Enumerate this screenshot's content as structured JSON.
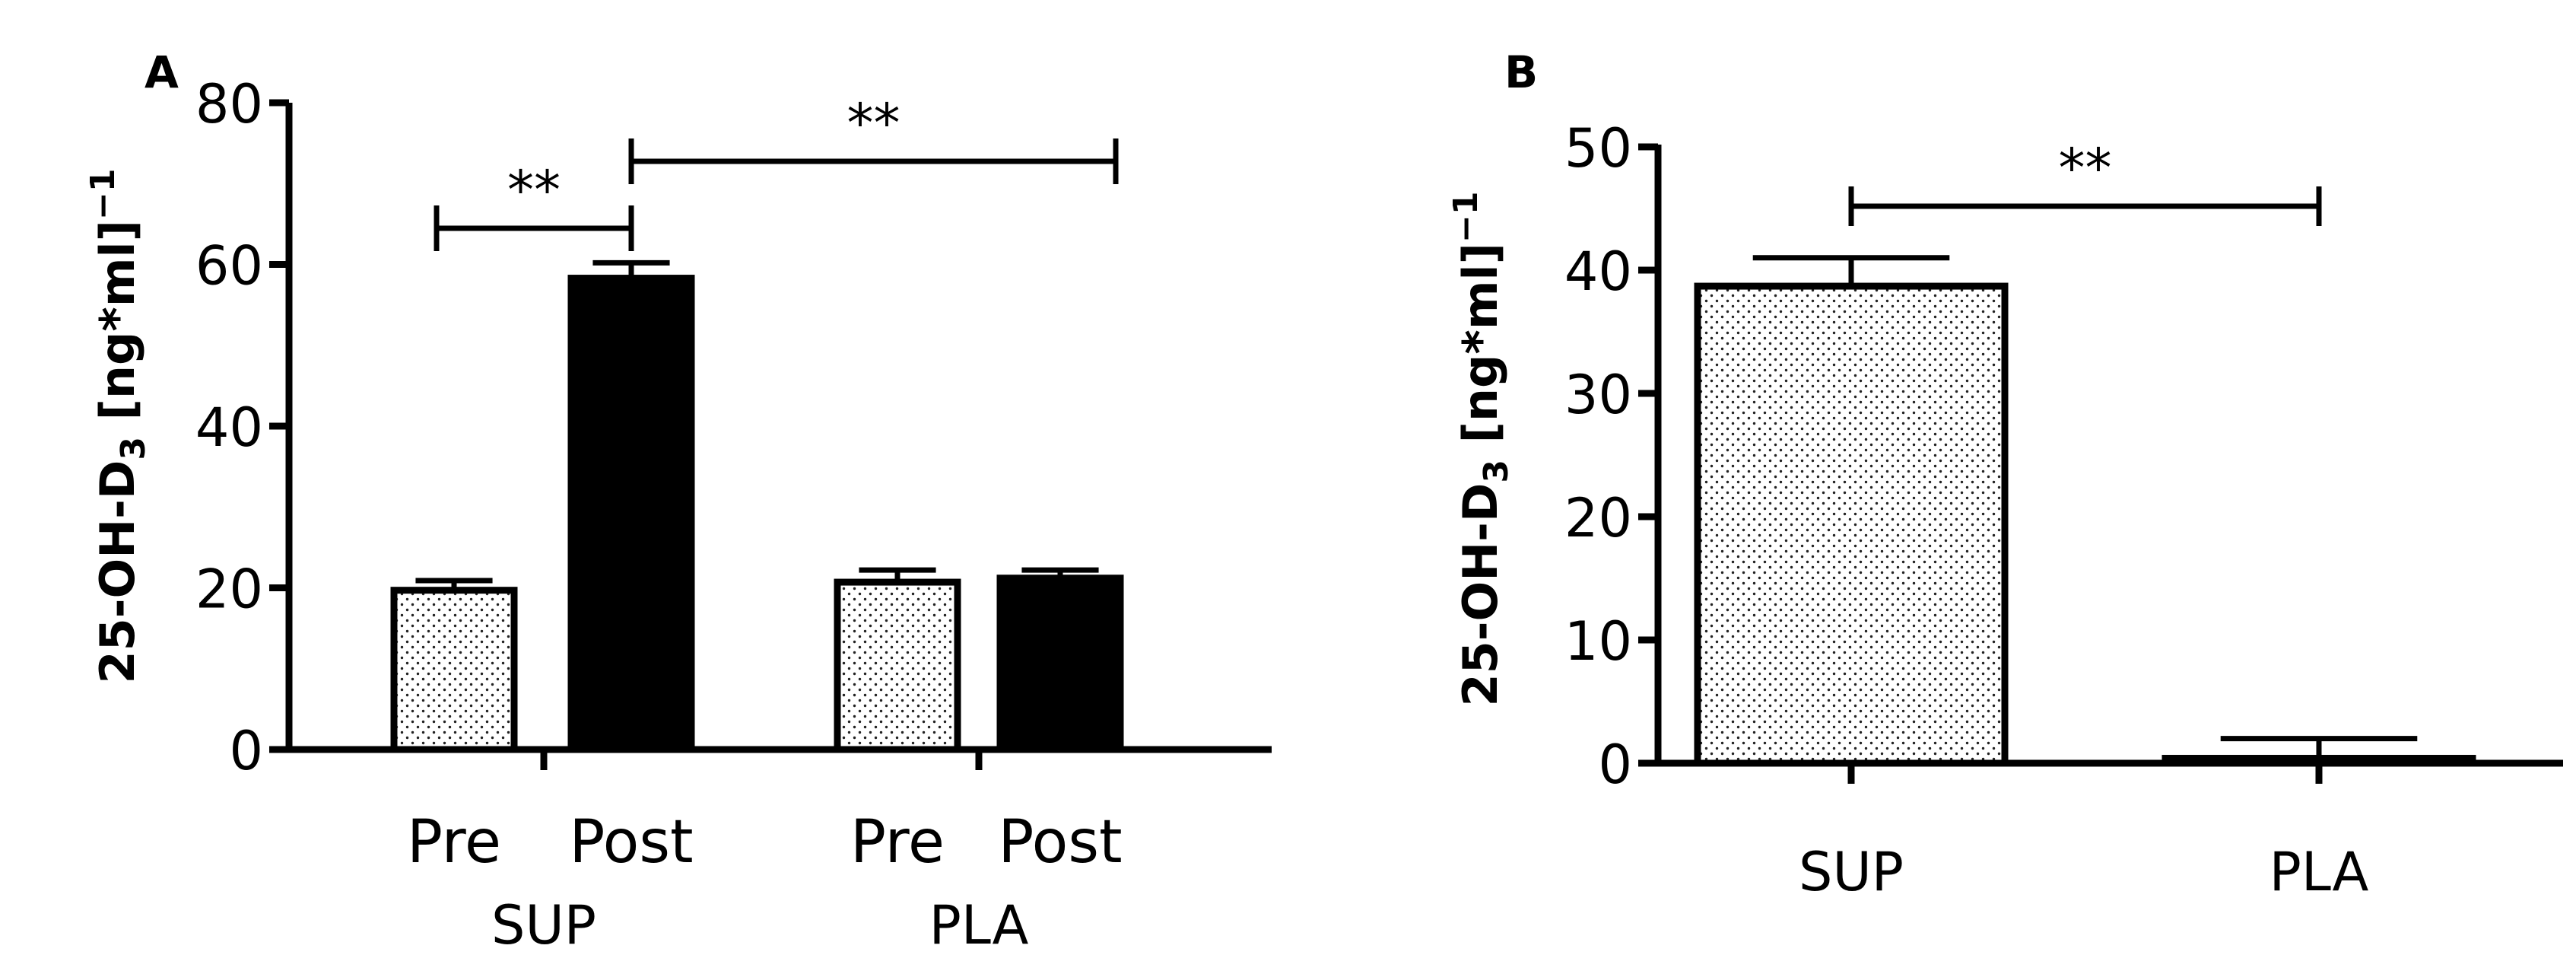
{
  "chart_data": [
    {
      "panel_label": "A",
      "type": "bar",
      "ylabel_main": "25-OH-D",
      "ylabel_sub": "3",
      "ylabel_rest": " [ng*ml]",
      "ylabel_sup": "−1",
      "ylim": [
        0,
        80
      ],
      "yticks": [
        "0",
        "20",
        "40",
        "60",
        "80"
      ],
      "groups": [
        {
          "label": "SUP",
          "bars": [
            {
              "label": "Pre",
              "value": 19.7,
              "error": 1.2,
              "fill": "dotted"
            },
            {
              "label": "Post",
              "value": 58.3,
              "error": 1.9,
              "fill": "solid"
            }
          ]
        },
        {
          "label": "PLA",
          "bars": [
            {
              "label": "Pre",
              "value": 20.7,
              "error": 1.5,
              "fill": "dotted"
            },
            {
              "label": "Post",
              "value": 21.2,
              "error": 1.0,
              "fill": "solid"
            }
          ]
        }
      ],
      "significance": [
        {
          "text": "**",
          "from": "SUP Pre",
          "to": "SUP Post"
        },
        {
          "text": "**",
          "from": "SUP Post",
          "to": "PLA Post"
        }
      ]
    },
    {
      "panel_label": "B",
      "type": "bar",
      "ylabel_main": "25-OH-D",
      "ylabel_sub": "3",
      "ylabel_rest": " [ng*ml]",
      "ylabel_sup": "−1",
      "ylim": [
        0,
        50
      ],
      "yticks": [
        "0",
        "10",
        "20",
        "30",
        "40",
        "50"
      ],
      "categories": [
        "SUP",
        "PLA"
      ],
      "values": [
        38.7,
        0.4
      ],
      "errors": [
        2.3,
        1.6
      ],
      "fills": [
        "dotted",
        "dotted"
      ],
      "significance": [
        {
          "text": "**",
          "from": "SUP",
          "to": "PLA"
        }
      ]
    }
  ]
}
